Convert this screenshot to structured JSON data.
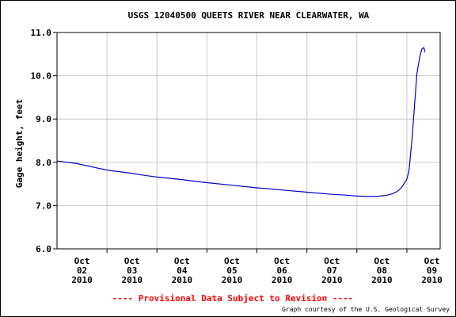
{
  "chart_data": {
    "type": "line",
    "title": "USGS 12040500 QUEETS RIVER NEAR CLEARWATER, WA",
    "xlabel": "",
    "ylabel": "Gage height, feet",
    "ylim": [
      6.0,
      11.0
    ],
    "yticks": [
      "6.0",
      "7.0",
      "8.0",
      "9.0",
      "10.0",
      "11.0"
    ],
    "xlim": [
      0.0,
      7.666
    ],
    "xtick_labels": [
      [
        "Oct",
        "02",
        "2010"
      ],
      [
        "Oct",
        "03",
        "2010"
      ],
      [
        "Oct",
        "04",
        "2010"
      ],
      [
        "Oct",
        "05",
        "2010"
      ],
      [
        "Oct",
        "06",
        "2010"
      ],
      [
        "Oct",
        "07",
        "2010"
      ],
      [
        "Oct",
        "08",
        "2010"
      ],
      [
        "Oct",
        "09",
        "2010"
      ]
    ],
    "grid": true,
    "line_color": "#0000cc",
    "series": [
      {
        "x": [
          0.0,
          0.4,
          0.8,
          1.0,
          1.4,
          1.8,
          2.0,
          2.5,
          3.0,
          3.5,
          4.0,
          4.5,
          5.0,
          5.5,
          5.8,
          6.0,
          6.2,
          6.4,
          6.6,
          6.7,
          6.8,
          6.88,
          6.92,
          6.95,
          6.98,
          7.0,
          7.04,
          7.1,
          7.2,
          7.26,
          7.3,
          7.34,
          7.36
        ],
        "values": [
          8.03,
          7.97,
          7.87,
          7.82,
          7.76,
          7.69,
          7.66,
          7.6,
          7.53,
          7.47,
          7.41,
          7.36,
          7.31,
          7.26,
          7.24,
          7.22,
          7.21,
          7.21,
          7.24,
          7.27,
          7.32,
          7.4,
          7.46,
          7.52,
          7.57,
          7.62,
          7.79,
          8.5,
          10.05,
          10.45,
          10.62,
          10.65,
          10.55
        ]
      }
    ]
  },
  "footer": {
    "provisional": "---- Provisional Data Subject to Revision ----",
    "credit": "Graph courtesy of the U.S. Geological Survey"
  }
}
